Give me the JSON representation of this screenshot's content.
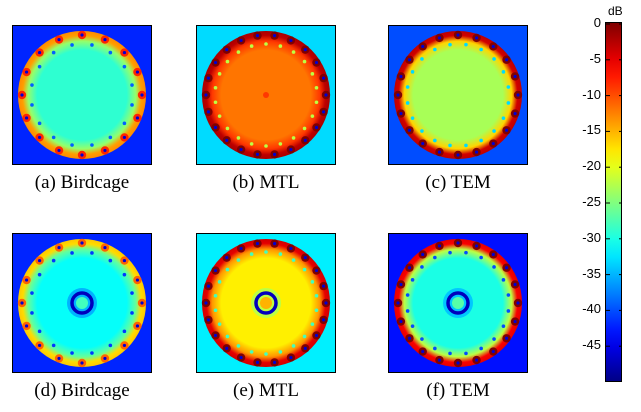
{
  "chart_data": {
    "type": "heatmap",
    "colorbar": {
      "unit": "dB",
      "range": [
        -50,
        0
      ],
      "ticks": [
        "0",
        "-5",
        "-10",
        "-15",
        "-20",
        "-25",
        "-30",
        "-35",
        "-40",
        "-45"
      ],
      "tick_values": [
        0,
        -5,
        -10,
        -15,
        -20,
        -25,
        -30,
        -35,
        -40,
        -45
      ],
      "colormap": "jet"
    },
    "panels": [
      {
        "caption": "(a) Birdcage",
        "background_db": -42,
        "interior_db": -29,
        "rim_db": -14,
        "rim_spots": 16,
        "has_center_ring": false,
        "has_center_dot": false
      },
      {
        "caption": "(b) MTL",
        "background_db": -33,
        "interior_db": -12,
        "rim_db": -3,
        "rim_spots": 22,
        "has_center_ring": false,
        "has_center_dot": true
      },
      {
        "caption": "(c) TEM",
        "background_db": -40,
        "interior_db": -23,
        "rim_db": -4,
        "rim_spots": 20,
        "has_center_ring": false,
        "has_center_dot": false
      },
      {
        "caption": "(d) Birdcage",
        "background_db": -42,
        "interior_db": -31,
        "rim_db": -17,
        "rim_spots": 16,
        "has_center_ring": true,
        "has_center_dot": false
      },
      {
        "caption": "(e) MTL",
        "background_db": -32,
        "interior_db": -18,
        "rim_db": -5,
        "rim_spots": 22,
        "has_center_ring": true,
        "has_center_dot": false
      },
      {
        "caption": "(f) TEM",
        "background_db": -43,
        "interior_db": -30,
        "rim_db": -6,
        "rim_spots": 20,
        "has_center_ring": true,
        "has_center_dot": false
      }
    ]
  }
}
